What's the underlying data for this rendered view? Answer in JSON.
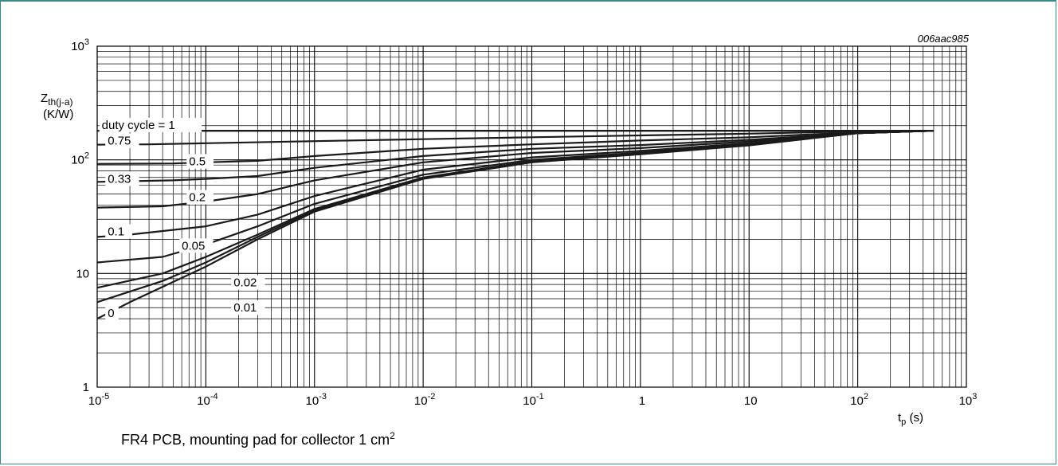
{
  "figure_code": "006aac985",
  "caption": {
    "text": "FR4 PCB, mounting pad for collector 1 cm",
    "sup": "2"
  },
  "chart_data": {
    "type": "line",
    "x_scale": "log",
    "y_scale": "log",
    "xlim": [
      1e-05,
      1000
    ],
    "ylim": [
      1,
      1000
    ],
    "grid": true,
    "ylabel": {
      "main": "Z",
      "sub": "th(j-a)",
      "unit": "(K/W)"
    },
    "xlabel": {
      "main": "t",
      "sub": "p",
      "unit": "(s)"
    },
    "x_ticks": [
      {
        "value": 1e-05,
        "base": "10",
        "exp": "-5"
      },
      {
        "value": 0.0001,
        "base": "10",
        "exp": "-4"
      },
      {
        "value": 0.001,
        "base": "10",
        "exp": "-3"
      },
      {
        "value": 0.01,
        "base": "10",
        "exp": "-2"
      },
      {
        "value": 0.1,
        "base": "10",
        "exp": "-1"
      },
      {
        "value": 1,
        "base": "1",
        "exp": ""
      },
      {
        "value": 10,
        "base": "10",
        "exp": ""
      },
      {
        "value": 100,
        "base": "10",
        "exp": "2"
      },
      {
        "value": 1000,
        "base": "10",
        "exp": "3"
      }
    ],
    "y_ticks": [
      {
        "value": 1,
        "base": "1",
        "exp": ""
      },
      {
        "value": 10,
        "base": "10",
        "exp": ""
      },
      {
        "value": 100,
        "base": "10",
        "exp": "2"
      },
      {
        "value": 1000,
        "base": "10",
        "exp": "3"
      }
    ],
    "series": [
      {
        "name": "duty cycle = 1",
        "label_at": [
          1.1e-05,
          190
        ],
        "points": [
          [
            1e-05,
            180
          ],
          [
            500,
            180
          ]
        ]
      },
      {
        "name": "0.75",
        "label_at": [
          1.25e-05,
          138
        ],
        "points": [
          [
            1e-05,
            136
          ],
          [
            3e-05,
            137
          ],
          [
            0.0001,
            140
          ],
          [
            0.001,
            146
          ],
          [
            0.01,
            152
          ],
          [
            0.1,
            158
          ],
          [
            1,
            164
          ],
          [
            10,
            170
          ],
          [
            100,
            178
          ],
          [
            500,
            180
          ]
        ]
      },
      {
        "name": "0.5",
        "label_at": [
          7e-05,
          91
        ],
        "points": [
          [
            1e-05,
            92
          ],
          [
            5e-05,
            93
          ],
          [
            0.0001,
            95
          ],
          [
            0.0003,
            98
          ],
          [
            0.001,
            108
          ],
          [
            0.01,
            125
          ],
          [
            0.1,
            137
          ],
          [
            1,
            148
          ],
          [
            10,
            158
          ],
          [
            100,
            175
          ],
          [
            500,
            180
          ]
        ]
      },
      {
        "name": "0.33",
        "label_at": [
          1.25e-05,
          64
        ],
        "points": [
          [
            1e-05,
            64
          ],
          [
            5e-05,
            66
          ],
          [
            0.0001,
            68
          ],
          [
            0.0003,
            72
          ],
          [
            0.001,
            85
          ],
          [
            0.01,
            108
          ],
          [
            0.1,
            125
          ],
          [
            1,
            135
          ],
          [
            10,
            150
          ],
          [
            100,
            172
          ],
          [
            500,
            180
          ]
        ]
      },
      {
        "name": "0.2",
        "label_at": [
          7e-05,
          44
        ],
        "points": [
          [
            1e-05,
            38
          ],
          [
            4e-05,
            39
          ],
          [
            0.0001,
            43
          ],
          [
            0.0003,
            50
          ],
          [
            0.001,
            66
          ],
          [
            0.01,
            95
          ],
          [
            0.1,
            115
          ],
          [
            1,
            127
          ],
          [
            10,
            145
          ],
          [
            100,
            172
          ],
          [
            500,
            180
          ]
        ]
      },
      {
        "name": "0.1",
        "label_at": [
          1.25e-05,
          22
        ],
        "points": [
          [
            1e-05,
            21
          ],
          [
            2e-05,
            22
          ],
          [
            0.0001,
            26
          ],
          [
            0.0003,
            33
          ],
          [
            0.001,
            48
          ],
          [
            0.01,
            82
          ],
          [
            0.1,
            105
          ],
          [
            1,
            120
          ],
          [
            10,
            140
          ],
          [
            100,
            172
          ],
          [
            500,
            180
          ]
        ]
      },
      {
        "name": "0.05",
        "label_at": [
          6e-05,
          16.5
        ],
        "points": [
          [
            1e-05,
            12.5
          ],
          [
            4e-05,
            14
          ],
          [
            0.0001,
            18
          ],
          [
            0.0003,
            26
          ],
          [
            0.001,
            41
          ],
          [
            0.01,
            74
          ],
          [
            0.1,
            100
          ],
          [
            1,
            116
          ],
          [
            10,
            138
          ],
          [
            100,
            172
          ],
          [
            500,
            180
          ]
        ]
      },
      {
        "name": "0.02",
        "label_at": [
          0.00018,
          7.8
        ],
        "points": [
          [
            1e-05,
            7.5
          ],
          [
            4e-05,
            10
          ],
          [
            0.0001,
            14
          ],
          [
            0.0003,
            22
          ],
          [
            0.001,
            37
          ],
          [
            0.01,
            70
          ],
          [
            0.1,
            97
          ],
          [
            1,
            114
          ],
          [
            10,
            136
          ],
          [
            100,
            172
          ],
          [
            500,
            180
          ]
        ]
      },
      {
        "name": "0.01",
        "label_at": [
          0.00018,
          4.7
        ],
        "points": [
          [
            1e-05,
            5.6
          ],
          [
            4e-05,
            8.6
          ],
          [
            0.0001,
            12.5
          ],
          [
            0.0003,
            21
          ],
          [
            0.001,
            36
          ],
          [
            0.01,
            69
          ],
          [
            0.1,
            96
          ],
          [
            1,
            113
          ],
          [
            10,
            135
          ],
          [
            100,
            172
          ],
          [
            500,
            180
          ]
        ]
      },
      {
        "name": "0",
        "label_at": [
          1.25e-05,
          4.2
        ],
        "points": [
          [
            1e-05,
            4
          ],
          [
            2e-05,
            5.6
          ],
          [
            0.0001,
            11.5
          ],
          [
            0.0003,
            20
          ],
          [
            0.001,
            35
          ],
          [
            0.01,
            68
          ],
          [
            0.1,
            95
          ],
          [
            1,
            112
          ],
          [
            10,
            134
          ],
          [
            100,
            172
          ],
          [
            500,
            180
          ]
        ]
      }
    ]
  }
}
